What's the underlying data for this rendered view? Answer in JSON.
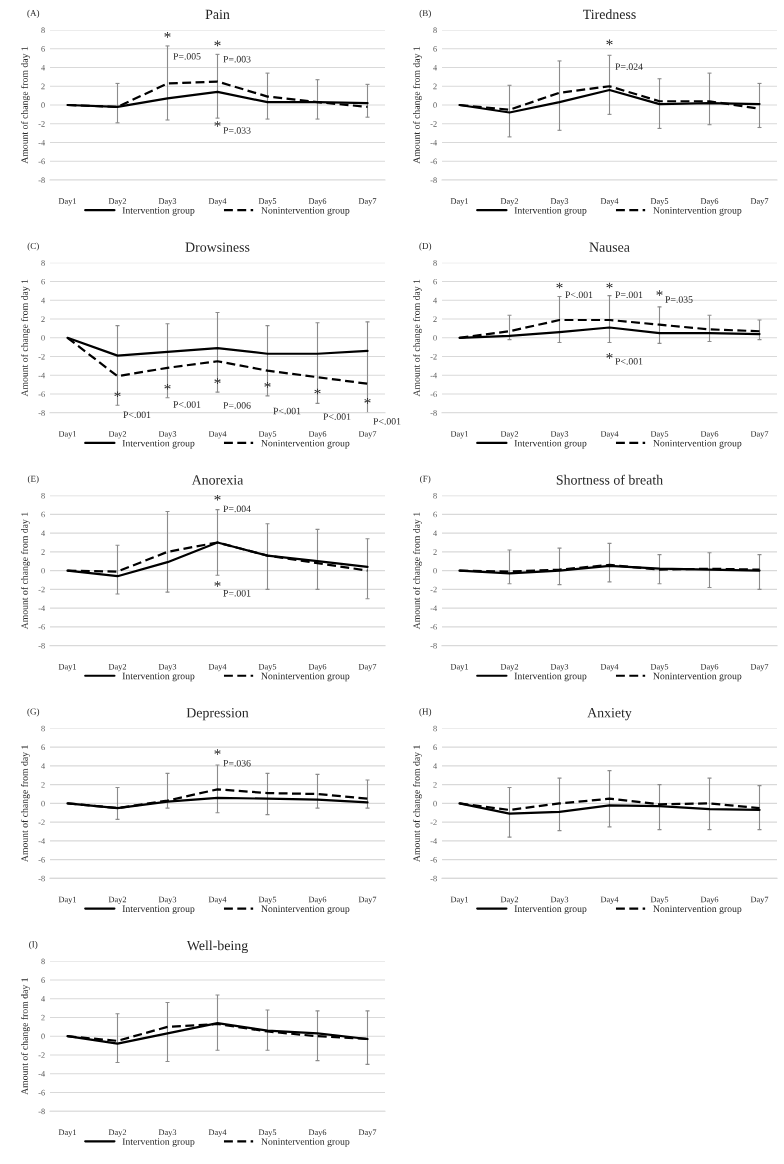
{
  "chart_data": [
    {
      "type": "line",
      "subtitle": "(A)",
      "title": "Pain",
      "ylabel": "Amount of change from day 1",
      "categories": [
        "Day1",
        "Day2",
        "Day3",
        "Day4",
        "Day5",
        "Day6",
        "Day7"
      ],
      "ylim": [
        -8,
        8
      ],
      "yticks": [
        -8,
        -6,
        -4,
        -2,
        0,
        2,
        4,
        6,
        8
      ],
      "grid": "y",
      "legend": "bottom",
      "marker": "none",
      "series": [
        {
          "name": "Intervention group",
          "color": "#000000",
          "line_style": "solid",
          "values": [
            0,
            -0.2,
            0.7,
            1.4,
            0.3,
            0.3,
            0.2
          ]
        },
        {
          "name": "Nonintervention group",
          "color": "#000000",
          "line_style": "dashed",
          "values": [
            0,
            -0.2,
            2.3,
            2.5,
            0.9,
            0.3,
            -0.2
          ],
          "errors": [
            null,
            [
              -1.9,
              2.3
            ],
            [
              -1.6,
              6.3
            ],
            [
              -1.4,
              5.4
            ],
            [
              -1.5,
              3.4
            ],
            [
              -1.5,
              2.7
            ],
            [
              -1.3,
              2.2
            ]
          ]
        }
      ],
      "annotations": [
        "*",
        "P=.005",
        "*",
        "P=.003",
        "*",
        "P=.033"
      ]
    },
    {
      "type": "line",
      "subtitle": "(B)",
      "title": "Tiredness",
      "ylabel": "Amount of change from day 1",
      "categories": [
        "Day1",
        "Day2",
        "Day3",
        "Day4",
        "Day5",
        "Day6",
        "Day7"
      ],
      "ylim": [
        -8,
        8
      ],
      "yticks": [
        -8,
        -6,
        -4,
        -2,
        0,
        2,
        4,
        6,
        8
      ],
      "grid": "y",
      "legend": "bottom",
      "marker": "none",
      "series": [
        {
          "name": "Intervention group",
          "color": "#000000",
          "line_style": "solid",
          "values": [
            0,
            -0.8,
            0.3,
            1.6,
            0.1,
            0.2,
            0.1
          ]
        },
        {
          "name": "Nonintervention group",
          "color": "#000000",
          "line_style": "dashed",
          "values": [
            0,
            -0.5,
            1.3,
            2.0,
            0.4,
            0.4,
            -0.4
          ],
          "errors": [
            null,
            [
              -3.4,
              2.1
            ],
            [
              -2.7,
              4.7
            ],
            [
              -1.0,
              5.3
            ],
            [
              -2.5,
              2.8
            ],
            [
              -2.1,
              3.4
            ],
            [
              -2.4,
              2.3
            ]
          ]
        }
      ],
      "annotations": [
        "*",
        "P=.024"
      ]
    },
    {
      "type": "line",
      "subtitle": "(C)",
      "title": "Drowsiness",
      "ylabel": "Amount of change from day 1",
      "categories": [
        "Day1",
        "Day2",
        "Day3",
        "Day4",
        "Day5",
        "Day6",
        "Day7"
      ],
      "ylim": [
        -8,
        8
      ],
      "yticks": [
        -8,
        -6,
        -4,
        -2,
        0,
        2,
        4,
        6,
        8
      ],
      "grid": "y",
      "legend": "bottom",
      "marker": "none",
      "series": [
        {
          "name": "Intervention group",
          "color": "#000000",
          "line_style": "solid",
          "values": [
            0,
            -1.9,
            -1.5,
            -1.1,
            -1.7,
            -1.7,
            -1.4
          ]
        },
        {
          "name": "Nonintervention group",
          "color": "#000000",
          "line_style": "dashed",
          "values": [
            0,
            -4.1,
            -3.2,
            -2.5,
            -3.5,
            -4.2,
            -4.9
          ],
          "errors": [
            null,
            [
              -7.2,
              1.3
            ],
            [
              -6.4,
              1.5
            ],
            [
              -5.8,
              2.7
            ],
            [
              -6.2,
              1.3
            ],
            [
              -7.0,
              1.6
            ],
            [
              -8.0,
              1.7
            ]
          ]
        }
      ],
      "annotations": [
        "*",
        "P<.001",
        "*",
        "P<.001",
        "*",
        "P=.006",
        "*",
        "P<.001",
        "*",
        "P<.001",
        "*",
        "P<.001"
      ]
    },
    {
      "type": "line",
      "subtitle": "(D)",
      "title": "Nausea",
      "ylabel": "Amount of change from day 1",
      "categories": [
        "Day1",
        "Day2",
        "Day3",
        "Day4",
        "Day5",
        "Day6",
        "Day7"
      ],
      "ylim": [
        -8,
        8
      ],
      "yticks": [
        -8,
        -6,
        -4,
        -2,
        0,
        2,
        4,
        6,
        8
      ],
      "grid": "y",
      "legend": "bottom",
      "marker": "none",
      "series": [
        {
          "name": "Intervention group",
          "color": "#000000",
          "line_style": "solid",
          "values": [
            0,
            0.2,
            0.6,
            1.1,
            0.5,
            0.5,
            0.4
          ]
        },
        {
          "name": "Nonintervention group",
          "color": "#000000",
          "line_style": "dashed",
          "values": [
            0,
            0.7,
            1.9,
            1.9,
            1.4,
            0.9,
            0.7
          ],
          "errors": [
            null,
            [
              -0.2,
              2.4
            ],
            [
              -0.5,
              4.4
            ],
            [
              -0.5,
              4.5
            ],
            [
              -0.6,
              3.3
            ],
            [
              -0.4,
              2.4
            ],
            [
              -0.2,
              1.9
            ]
          ]
        }
      ],
      "annotations": [
        "*",
        "P<.001",
        "*",
        "P=.001",
        "*",
        "P=.035",
        "*",
        "P<.001"
      ]
    },
    {
      "type": "line",
      "subtitle": "(E)",
      "title": "Anorexia",
      "ylabel": "Amount of change from day 1",
      "categories": [
        "Day1",
        "Day2",
        "Day3",
        "Day4",
        "Day5",
        "Day6",
        "Day7"
      ],
      "ylim": [
        -8,
        8
      ],
      "yticks": [
        -8,
        -6,
        -4,
        -2,
        0,
        2,
        4,
        6,
        8
      ],
      "grid": "y",
      "legend": "bottom",
      "marker": "none",
      "series": [
        {
          "name": "Intervention group",
          "color": "#000000",
          "line_style": "solid",
          "values": [
            0,
            -0.6,
            0.9,
            3.0,
            1.6,
            1.0,
            0.4
          ]
        },
        {
          "name": "Nonintervention group",
          "color": "#000000",
          "line_style": "dashed",
          "values": [
            0,
            -0.1,
            2.0,
            3.0,
            1.6,
            0.8,
            0.0
          ],
          "errors": [
            null,
            [
              -2.5,
              2.7
            ],
            [
              -2.3,
              6.3
            ],
            [
              -0.5,
              6.5
            ],
            [
              -2.0,
              5.0
            ],
            [
              -2.0,
              4.4
            ],
            [
              -3.0,
              3.4
            ]
          ]
        }
      ],
      "annotations": [
        "*",
        "P=.004",
        "*",
        "P=.001"
      ]
    },
    {
      "type": "line",
      "subtitle": "(F)",
      "title": "Shortness of breath",
      "ylabel": "Amount of change from day 1",
      "categories": [
        "Day1",
        "Day2",
        "Day3",
        "Day4",
        "Day5",
        "Day6",
        "Day7"
      ],
      "ylim": [
        -8,
        8
      ],
      "yticks": [
        -8,
        -6,
        -4,
        -2,
        0,
        2,
        4,
        6,
        8
      ],
      "grid": "y",
      "legend": "bottom",
      "marker": "none",
      "series": [
        {
          "name": "Intervention group",
          "color": "#000000",
          "line_style": "solid",
          "values": [
            0,
            -0.3,
            0.0,
            0.5,
            0.2,
            0.1,
            0.0
          ]
        },
        {
          "name": "Nonintervention group",
          "color": "#000000",
          "line_style": "dashed",
          "values": [
            0,
            -0.1,
            0.1,
            0.6,
            0.1,
            0.2,
            0.1
          ],
          "errors": [
            null,
            [
              -1.4,
              2.2
            ],
            [
              -1.5,
              2.4
            ],
            [
              -1.2,
              2.9
            ],
            [
              -1.4,
              1.7
            ],
            [
              -1.8,
              1.9
            ],
            [
              -2.0,
              1.7
            ]
          ]
        }
      ]
    },
    {
      "type": "line",
      "subtitle": "(G)",
      "title": "Depression",
      "ylabel": "Amount of change from day 1",
      "categories": [
        "Day1",
        "Day2",
        "Day3",
        "Day4",
        "Day5",
        "Day6",
        "Day7"
      ],
      "ylim": [
        -8,
        8
      ],
      "yticks": [
        -8,
        -6,
        -4,
        -2,
        0,
        2,
        4,
        6,
        8
      ],
      "grid": "y",
      "legend": "bottom",
      "marker": "none",
      "series": [
        {
          "name": "Intervention group",
          "color": "#000000",
          "line_style": "solid",
          "values": [
            0,
            -0.5,
            0.2,
            0.6,
            0.5,
            0.4,
            0.1
          ]
        },
        {
          "name": "Nonintervention group",
          "color": "#000000",
          "line_style": "dashed",
          "values": [
            0,
            -0.5,
            0.3,
            1.5,
            1.1,
            1.0,
            0.5
          ],
          "errors": [
            null,
            [
              -1.7,
              1.7
            ],
            [
              -0.5,
              3.2
            ],
            [
              -1.0,
              4.1
            ],
            [
              -1.2,
              3.2
            ],
            [
              -0.5,
              3.1
            ],
            [
              -0.5,
              2.5
            ]
          ]
        }
      ],
      "annotations": [
        "*",
        "P=.036"
      ]
    },
    {
      "type": "line",
      "subtitle": "(H)",
      "title": "Anxiety",
      "ylabel": "Amount of change from day 1",
      "categories": [
        "Day1",
        "Day2",
        "Day3",
        "Day4",
        "Day5",
        "Day6",
        "Day7"
      ],
      "ylim": [
        -8,
        8
      ],
      "yticks": [
        -8,
        -6,
        -4,
        -2,
        0,
        2,
        4,
        6,
        8
      ],
      "grid": "y",
      "legend": "bottom",
      "marker": "none",
      "series": [
        {
          "name": "Intervention group",
          "color": "#000000",
          "line_style": "solid",
          "values": [
            0,
            -1.1,
            -0.9,
            -0.2,
            -0.3,
            -0.6,
            -0.7
          ]
        },
        {
          "name": "Nonintervention group",
          "color": "#000000",
          "line_style": "dashed",
          "values": [
            0,
            -0.7,
            0.0,
            0.5,
            -0.1,
            0.0,
            -0.5
          ],
          "errors": [
            null,
            [
              -3.6,
              1.7
            ],
            [
              -2.9,
              2.7
            ],
            [
              -2.5,
              3.5
            ],
            [
              -2.8,
              2.0
            ],
            [
              -2.8,
              2.7
            ],
            [
              -2.8,
              1.9
            ]
          ]
        }
      ]
    },
    {
      "type": "line",
      "subtitle": "(I)",
      "title": "Well-being",
      "ylabel": "Amount of change from day 1",
      "categories": [
        "Day1",
        "Day2",
        "Day3",
        "Day4",
        "Day5",
        "Day6",
        "Day7"
      ],
      "ylim": [
        -8,
        8
      ],
      "yticks": [
        -8,
        -6,
        -4,
        -2,
        0,
        2,
        4,
        6,
        8
      ],
      "grid": "y",
      "legend": "bottom",
      "marker": "none",
      "series": [
        {
          "name": "Intervention group",
          "color": "#000000",
          "line_style": "solid",
          "values": [
            0,
            -0.8,
            0.3,
            1.4,
            0.6,
            0.3,
            -0.3
          ]
        },
        {
          "name": "Nonintervention group",
          "color": "#000000",
          "line_style": "dashed",
          "values": [
            0,
            -0.5,
            1.0,
            1.3,
            0.5,
            0.0,
            -0.3
          ],
          "errors": [
            null,
            [
              -2.8,
              2.4
            ],
            [
              -2.7,
              3.6
            ],
            [
              -1.5,
              4.4
            ],
            [
              -1.5,
              2.8
            ],
            [
              -2.6,
              2.7
            ],
            [
              -3.0,
              2.7
            ]
          ]
        }
      ]
    }
  ]
}
